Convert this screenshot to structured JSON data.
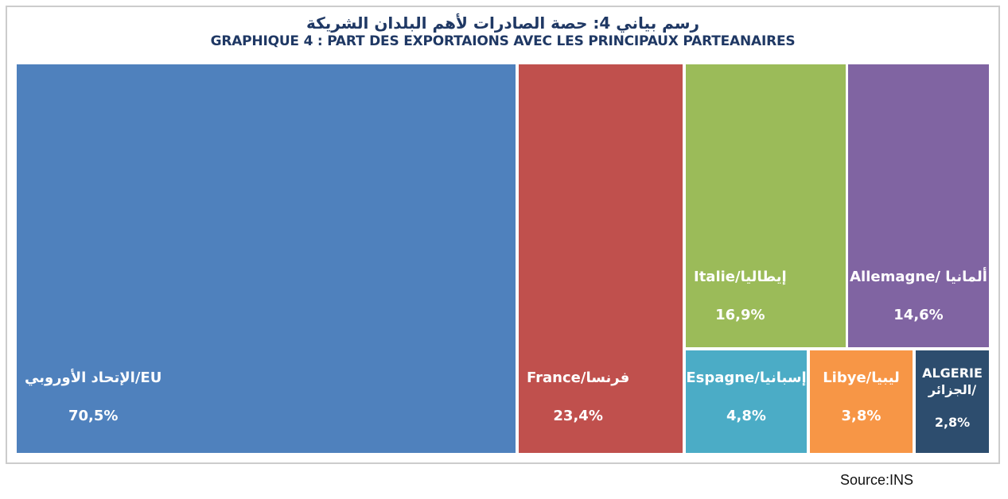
{
  "header": {
    "title_arabic": "رسم بياني 4: حصة الصادرات لأهم البلدان الشريكة",
    "title_french": "GRAPHIQUE 4 : PART DES EXPORTAIONS AVEC LES PRINCIPAUX PARTEANAIRES",
    "title_color": "#1F3864"
  },
  "footer": {
    "source": "Source:INS"
  },
  "chart_data": {
    "type": "treemap",
    "title": "GRAPHIQUE 4 : PART DES EXPORTAIONS AVEC LES PRINCIPAUX PARTEANAIRES",
    "title_arabic": "رسم بياني 4: حصة الصادرات لأهم البلدان الشريكة",
    "unit": "% share of exports",
    "legend_position": "none",
    "background": "#FFFFFF",
    "items": [
      {
        "id": "eu",
        "name_fr": "EU",
        "name_ar": "الإتحاد الأوروبي",
        "label": "الإتحاد الأوروبي/EU",
        "value": 70.5,
        "value_label": "70,5%",
        "color": "#4F81BD"
      },
      {
        "id": "france",
        "name_fr": "France",
        "name_ar": "فرنسا",
        "label": "France/فرنسا",
        "value": 23.4,
        "value_label": "23,4%",
        "color": "#C0504D"
      },
      {
        "id": "italie",
        "name_fr": "Italie",
        "name_ar": "إيطاليا",
        "label": "Italie/إيطاليا",
        "value": 16.9,
        "value_label": "16,9%",
        "color": "#9BBB59"
      },
      {
        "id": "allemagne",
        "name_fr": "Allemagne",
        "name_ar": "ألمانيا",
        "label": "Allemagne/ ألمانيا",
        "value": 14.6,
        "value_label": "14,6%",
        "color": "#8064A2"
      },
      {
        "id": "espagne",
        "name_fr": "Espagne",
        "name_ar": "إسبانيا",
        "label": "Espagne/إسبانيا",
        "value": 4.8,
        "value_label": "4,8%",
        "color": "#4BACC6"
      },
      {
        "id": "libye",
        "name_fr": "Libye",
        "name_ar": "ليبيا",
        "label": "Libye/ليبيا",
        "value": 3.8,
        "value_label": "3,8%",
        "color": "#F79646"
      },
      {
        "id": "algerie",
        "name_fr": "ALGERIE",
        "name_ar": "الجزائر",
        "label": "ALGERIE\nالجزائر/",
        "value": 2.8,
        "value_label": "2,8%",
        "color": "#2D4D6E"
      }
    ]
  }
}
